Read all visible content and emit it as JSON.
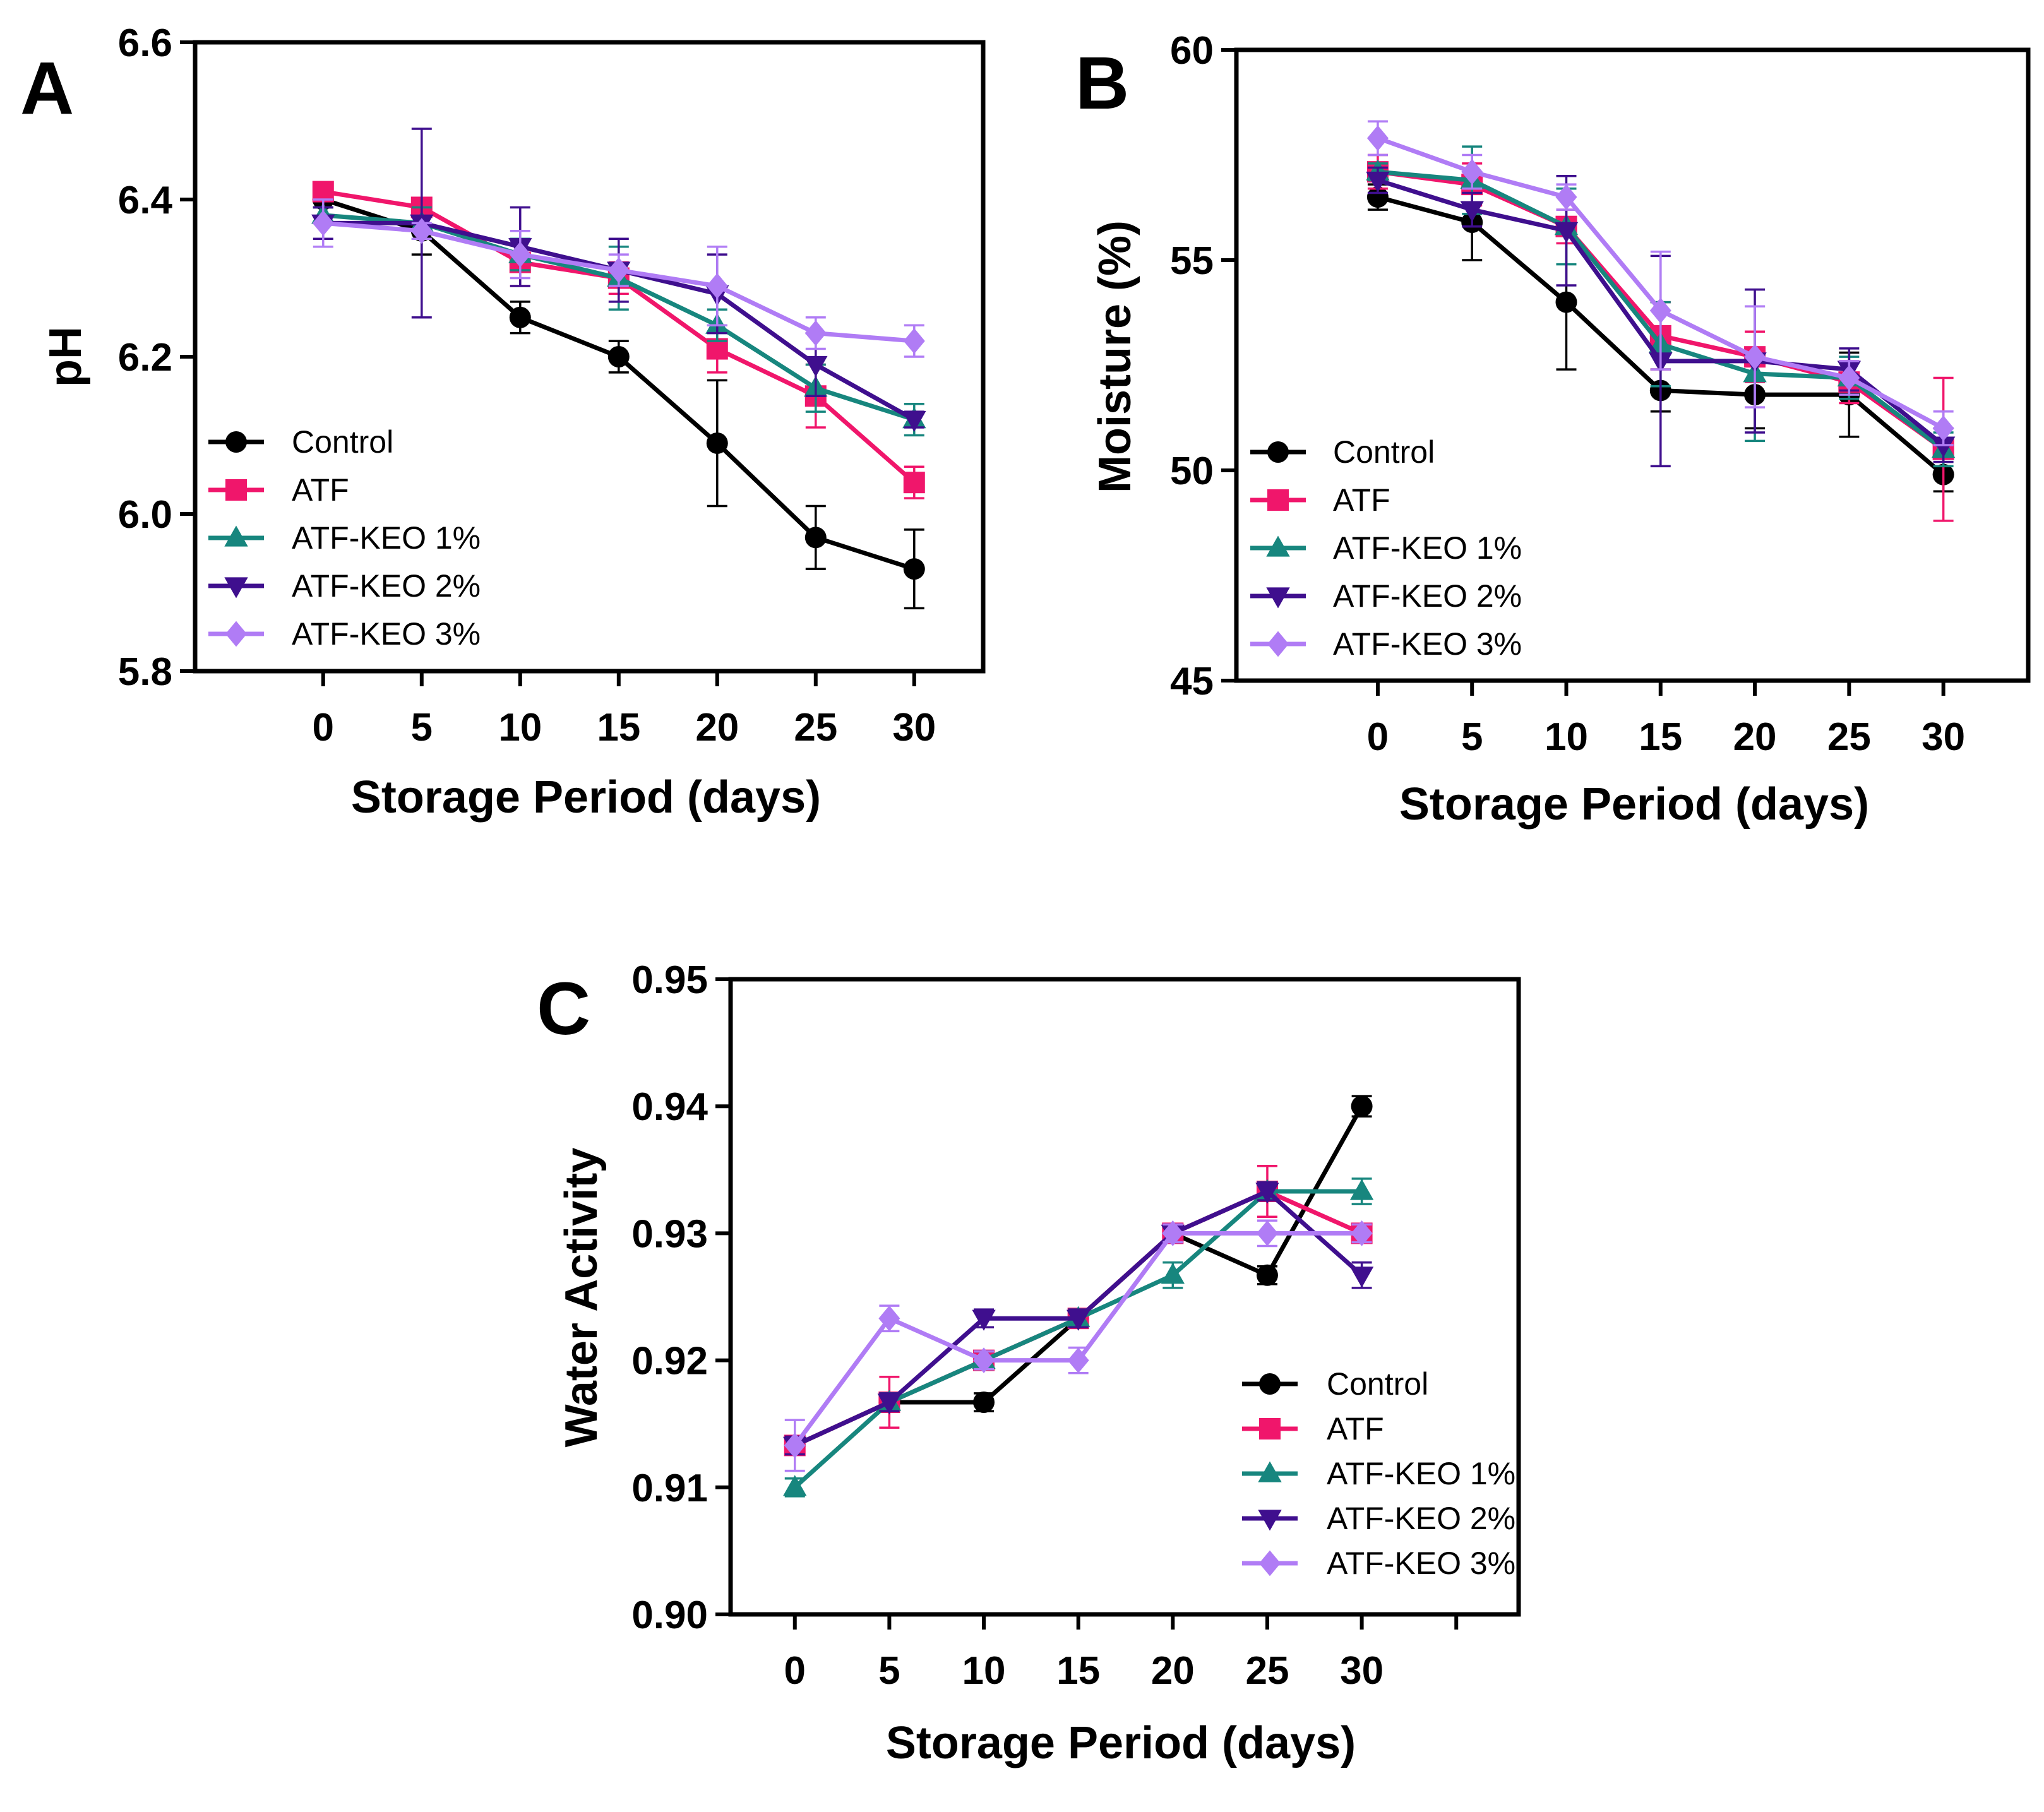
{
  "figure": {
    "series_names": [
      "Control",
      "ATF",
      "ATF-KEO 1%",
      "ATF-KEO 2%",
      "ATF-KEO 3%"
    ],
    "series_colors": [
      "#000000",
      "#f0166b",
      "#17867e",
      "#3f0f8e",
      "#b07cf5"
    ],
    "series_markers": [
      "circle",
      "square",
      "triangle-up",
      "triangle-down",
      "diamond"
    ]
  },
  "chart_data": [
    {
      "panel_label": "A",
      "type": "line",
      "title": "",
      "xlabel": "Storage Period (days)",
      "ylabel": "pH",
      "x": [
        0,
        5,
        10,
        15,
        20,
        25,
        30
      ],
      "xticks": [
        "0",
        "5",
        "10",
        "15",
        "20",
        "25",
        "30"
      ],
      "xlim": [
        -6.5,
        33.5
      ],
      "ylim": [
        5.8,
        6.6
      ],
      "yticks": [
        "5.8",
        "6.0",
        "6.2",
        "6.4",
        "6.6"
      ],
      "ytick_values": [
        5.8,
        6.0,
        6.2,
        6.4,
        6.6
      ],
      "grid": false,
      "legend_position": "bottom-left",
      "series": [
        {
          "name": "Control",
          "values": [
            6.4,
            6.36,
            6.25,
            6.2,
            6.09,
            5.97,
            5.93
          ],
          "errors": [
            0.01,
            0.03,
            0.02,
            0.02,
            0.08,
            0.04,
            0.05
          ]
        },
        {
          "name": "ATF",
          "values": [
            6.41,
            6.39,
            6.32,
            6.3,
            6.21,
            6.15,
            6.04
          ],
          "errors": [
            0.01,
            0.01,
            0.03,
            0.02,
            0.03,
            0.04,
            0.02
          ]
        },
        {
          "name": "ATF-KEO 1%",
          "values": [
            6.38,
            6.37,
            6.33,
            6.3,
            6.24,
            6.16,
            6.12
          ],
          "errors": [
            0.01,
            0.02,
            0.02,
            0.04,
            0.02,
            0.03,
            0.02
          ]
        },
        {
          "name": "ATF-KEO 2%",
          "values": [
            6.37,
            6.37,
            6.34,
            6.31,
            6.28,
            6.19,
            6.12
          ],
          "errors": [
            0.02,
            0.12,
            0.05,
            0.04,
            0.05,
            0.04,
            0.01
          ]
        },
        {
          "name": "ATF-KEO 3%",
          "values": [
            6.37,
            6.36,
            6.33,
            6.31,
            6.29,
            6.23,
            6.22
          ],
          "errors": [
            0.03,
            0.01,
            0.03,
            0.02,
            0.05,
            0.02,
            0.02
          ]
        }
      ]
    },
    {
      "panel_label": "B",
      "type": "line",
      "title": "",
      "xlabel": "Storage Period (days)",
      "ylabel": "Moisture (%)",
      "x": [
        0,
        5,
        10,
        15,
        20,
        25,
        30
      ],
      "xticks": [
        "0",
        "5",
        "10",
        "15",
        "20",
        "25",
        "30"
      ],
      "xlim": [
        -7.5,
        34.5
      ],
      "ylim": [
        45,
        60
      ],
      "yticks": [
        "45",
        "50",
        "55",
        "60"
      ],
      "ytick_values": [
        45,
        50,
        55,
        60
      ],
      "grid": false,
      "legend_position": "bottom-left",
      "series": [
        {
          "name": "Control",
          "values": [
            56.5,
            55.9,
            54.0,
            51.9,
            51.8,
            51.8,
            49.9
          ],
          "errors": [
            0.3,
            0.9,
            1.6,
            0.5,
            0.8,
            1.0,
            0.4
          ]
        },
        {
          "name": "ATF",
          "values": [
            57.1,
            56.8,
            55.8,
            53.2,
            52.7,
            52.1,
            50.5
          ],
          "errors": [
            0.4,
            0.5,
            0.4,
            0.8,
            0.6,
            0.5,
            1.7
          ]
        },
        {
          "name": "ATF-KEO 1%",
          "values": [
            57.1,
            56.9,
            55.8,
            53.0,
            52.3,
            52.2,
            50.5
          ],
          "errors": [
            0.2,
            0.8,
            0.9,
            1.0,
            1.6,
            0.5,
            0.4
          ]
        },
        {
          "name": "ATF-KEO 2%",
          "values": [
            56.9,
            56.2,
            55.7,
            52.6,
            52.6,
            52.4,
            50.6
          ],
          "errors": [
            0.3,
            0.4,
            1.3,
            2.5,
            1.7,
            0.5,
            0.4
          ]
        },
        {
          "name": "ATF-KEO 3%",
          "values": [
            57.9,
            57.1,
            56.5,
            53.8,
            52.7,
            52.2,
            51.0
          ],
          "errors": [
            0.4,
            0.4,
            0.3,
            1.4,
            1.2,
            0.4,
            0.4
          ]
        }
      ]
    },
    {
      "panel_label": "C",
      "type": "line",
      "title": "",
      "xlabel": "Storage Period (days)",
      "ylabel": "Water Activity",
      "x": [
        0,
        5,
        10,
        15,
        20,
        25,
        30
      ],
      "xticks": [
        "0",
        "5",
        "10",
        "15",
        "20",
        "25",
        "30"
      ],
      "extra_tick_positions": [
        35
      ],
      "xlim": [
        -3.4,
        38.3
      ],
      "ylim": [
        0.9,
        0.95
      ],
      "yticks": [
        "0.90",
        "0.91",
        "0.92",
        "0.93",
        "0.94",
        "0.95"
      ],
      "ytick_values": [
        0.9,
        0.91,
        0.92,
        0.93,
        0.94,
        0.95
      ],
      "grid": false,
      "legend_position": "bottom-right",
      "series": [
        {
          "name": "Control",
          "values": [
            0.9133,
            0.9167,
            0.9167,
            0.9233,
            0.93,
            0.9267,
            0.94
          ],
          "errors": [
            0.0007,
            0.0007,
            0.0007,
            0.0007,
            0.0007,
            0.0007,
            0.0008
          ]
        },
        {
          "name": "ATF",
          "values": [
            0.9133,
            0.9167,
            0.92,
            0.9233,
            0.93,
            0.9333,
            0.93
          ],
          "errors": [
            0.0007,
            0.002,
            0.0007,
            0.0007,
            0.0007,
            0.002,
            0.0007
          ]
        },
        {
          "name": "ATF-KEO 1%",
          "values": [
            0.91,
            0.9167,
            0.92,
            0.9233,
            0.9267,
            0.9333,
            0.9333
          ],
          "errors": [
            0.0007,
            0.0007,
            0.0007,
            0.0007,
            0.001,
            0.0007,
            0.001
          ]
        },
        {
          "name": "ATF-KEO 2%",
          "values": [
            0.9133,
            0.9167,
            0.9233,
            0.9233,
            0.93,
            0.9333,
            0.9267
          ],
          "errors": [
            0.0007,
            0.0007,
            0.0007,
            0.0007,
            0.0007,
            0.0007,
            0.001
          ]
        },
        {
          "name": "ATF-KEO 3%",
          "values": [
            0.9133,
            0.9233,
            0.92,
            0.92,
            0.93,
            0.93,
            0.93
          ],
          "errors": [
            0.002,
            0.001,
            0.0007,
            0.001,
            0.0007,
            0.001,
            0.0007
          ]
        }
      ]
    }
  ]
}
